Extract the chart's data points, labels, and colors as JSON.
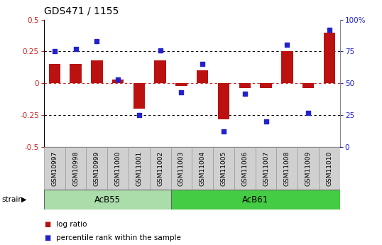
{
  "title": "GDS471 / 1155",
  "samples": [
    "GSM10997",
    "GSM10998",
    "GSM10999",
    "GSM11000",
    "GSM11001",
    "GSM11002",
    "GSM11003",
    "GSM11004",
    "GSM11005",
    "GSM11006",
    "GSM11007",
    "GSM11008",
    "GSM11009",
    "GSM11010"
  ],
  "log_ratio": [
    0.15,
    0.15,
    0.18,
    0.03,
    -0.2,
    0.18,
    -0.02,
    0.1,
    -0.28,
    -0.04,
    -0.04,
    0.25,
    -0.04,
    0.4
  ],
  "percentile": [
    75,
    77,
    83,
    53,
    25,
    76,
    43,
    65,
    12,
    42,
    20,
    80,
    27,
    92
  ],
  "groups": [
    {
      "label": "AcB55",
      "start": 0,
      "end": 6,
      "color": "#aaddaa"
    },
    {
      "label": "AcB61",
      "start": 6,
      "end": 14,
      "color": "#44cc44"
    }
  ],
  "ylim_left": [
    -0.5,
    0.5
  ],
  "ylim_right": [
    0,
    100
  ],
  "bar_color": "#bb1111",
  "dot_color": "#2222cc",
  "zero_line_color": "#cc2222",
  "bg_color": "#ffffff",
  "plot_bg_color": "#ffffff",
  "left_ylabel_color": "#cc2222",
  "right_ylabel_color": "#2222cc",
  "legend_log_ratio_color": "#bb1111",
  "legend_percentile_color": "#2222cc",
  "title_fontsize": 10,
  "tick_fontsize": 7.5,
  "legend_fontsize": 7.5,
  "group_label_fontsize": 8.5,
  "sample_fontsize": 6.5,
  "strain_box_color": "#d0d0d0",
  "bar_width": 0.55
}
